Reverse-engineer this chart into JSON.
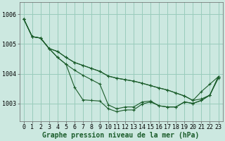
{
  "background_color": "#cce8e0",
  "grid_color": "#99ccbb",
  "line_color": "#1a5c2a",
  "xlabel": "Graphe pression niveau de la mer (hPa)",
  "xlabel_fontsize": 7,
  "tick_fontsize": 6,
  "ylim": [
    1002.4,
    1006.4
  ],
  "yticks": [
    1003,
    1004,
    1005,
    1006
  ],
  "xlim": [
    -0.5,
    23.5
  ],
  "xticks": [
    0,
    1,
    2,
    3,
    4,
    5,
    6,
    7,
    8,
    9,
    10,
    11,
    12,
    13,
    14,
    15,
    16,
    17,
    18,
    19,
    20,
    21,
    22,
    23
  ],
  "series": [
    [
      1005.85,
      1005.25,
      1005.2,
      1004.85,
      1004.75,
      1004.55,
      1004.38,
      1004.28,
      1004.18,
      1004.08,
      1003.92,
      1003.85,
      1003.8,
      1003.75,
      1003.68,
      1003.6,
      1003.52,
      1003.45,
      1003.35,
      1003.25,
      1003.1,
      1003.15,
      1003.28,
      1003.85
    ],
    [
      1005.85,
      1005.25,
      1005.2,
      1004.85,
      1004.75,
      1004.55,
      1004.38,
      1004.28,
      1004.18,
      1004.08,
      1003.92,
      1003.85,
      1003.8,
      1003.75,
      1003.68,
      1003.6,
      1003.52,
      1003.45,
      1003.35,
      1003.25,
      1003.1,
      1003.4,
      1003.65,
      1003.9
    ],
    [
      1005.85,
      1005.25,
      1005.2,
      1004.85,
      1004.55,
      1004.32,
      1004.12,
      1003.95,
      1003.8,
      1003.65,
      1002.95,
      1002.82,
      1002.88,
      1002.88,
      1003.05,
      1003.08,
      1002.92,
      1002.88,
      1002.88,
      1003.05,
      1003.0,
      1003.1,
      1003.28,
      1003.9
    ],
    [
      1005.85,
      1005.25,
      1005.2,
      1004.85,
      1004.55,
      1004.32,
      1003.55,
      1003.12,
      1003.1,
      1003.08,
      1002.82,
      1002.72,
      1002.78,
      1002.78,
      1002.98,
      1003.05,
      1002.92,
      1002.88,
      1002.88,
      1003.05,
      1003.0,
      1003.1,
      1003.28,
      1003.9
    ]
  ]
}
